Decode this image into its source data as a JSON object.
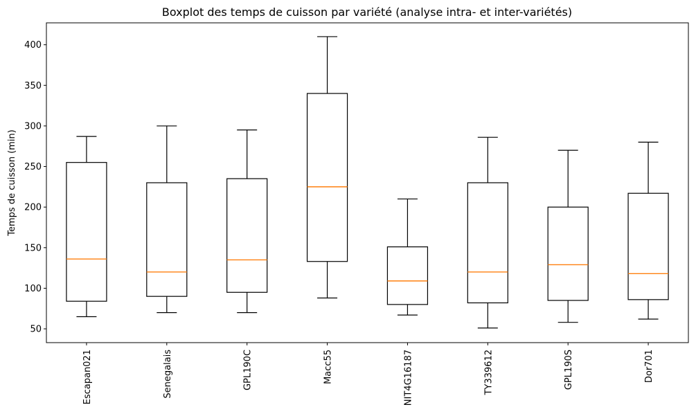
{
  "chart_data": {
    "type": "boxplot",
    "title": "Boxplot des temps de cuisson par variété (analyse intra- et inter-variétés)",
    "xlabel": "",
    "ylabel": "Temps de cuisson (min)",
    "ylim": [
      33,
      427
    ],
    "yticks": [
      50,
      100,
      150,
      200,
      250,
      300,
      350,
      400
    ],
    "grid": false,
    "colors": {
      "box": "#000000",
      "median": "#ff7f0e"
    },
    "categories": [
      "Escapan021",
      "Senegalais",
      "GPL190C",
      "Macc55",
      "NIT4G16187",
      "TY339612",
      "GPL190S",
      "Dor701"
    ],
    "boxes": [
      {
        "whisker_low": 65,
        "q1": 84,
        "median": 136,
        "q3": 255,
        "whisker_high": 287
      },
      {
        "whisker_low": 70,
        "q1": 90,
        "median": 120,
        "q3": 230,
        "whisker_high": 300
      },
      {
        "whisker_low": 70,
        "q1": 95,
        "median": 135,
        "q3": 235,
        "whisker_high": 295
      },
      {
        "whisker_low": 88,
        "q1": 133,
        "median": 225,
        "q3": 340,
        "whisker_high": 410
      },
      {
        "whisker_low": 67,
        "q1": 80,
        "median": 109,
        "q3": 151,
        "whisker_high": 210
      },
      {
        "whisker_low": 51,
        "q1": 82,
        "median": 120,
        "q3": 230,
        "whisker_high": 286
      },
      {
        "whisker_low": 58,
        "q1": 85,
        "median": 129,
        "q3": 200,
        "whisker_high": 270
      },
      {
        "whisker_low": 62,
        "q1": 86,
        "median": 118,
        "q3": 217,
        "whisker_high": 280
      }
    ]
  }
}
